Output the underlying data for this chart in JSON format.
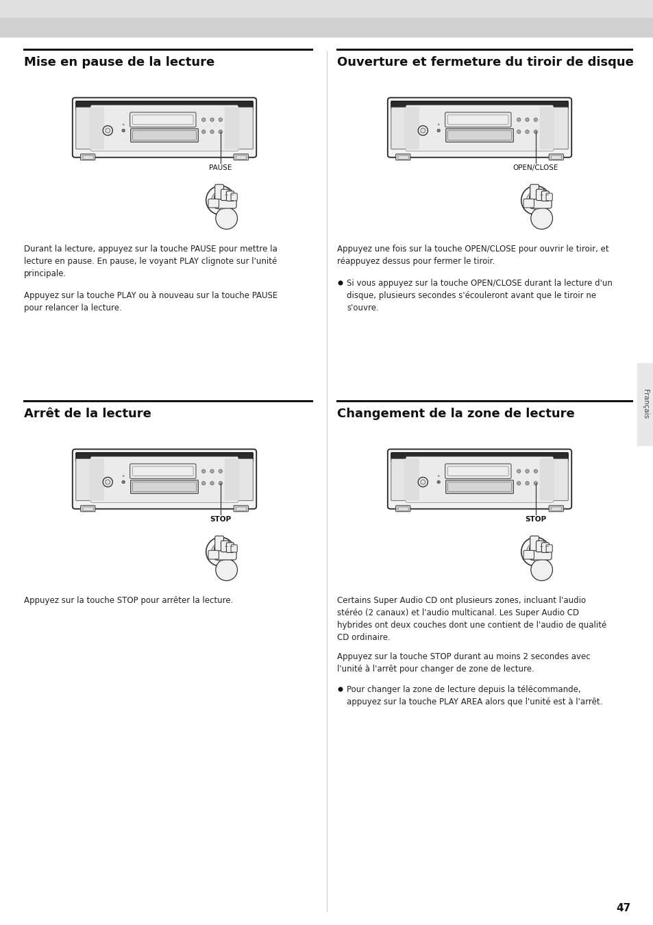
{
  "page_bg_top": "#d8d8d8",
  "page_bg": "#ffffff",
  "page_number": "47",
  "sidebar_label": "Français",
  "sections": [
    {
      "id": "pause",
      "col": 0,
      "title": "Mise en pause de la lecture",
      "button_label": "PAUSE"
    },
    {
      "id": "open_close",
      "col": 1,
      "title": "Ouverture et fermeture du tiroir de disque",
      "button_label": "OPEN/CLOSE"
    },
    {
      "id": "stop",
      "col": 0,
      "title": "Arrêt de la lecture",
      "button_label": "STOP"
    },
    {
      "id": "zone",
      "col": 1,
      "title": "Changement de la zone de lecture",
      "button_label": "STOP"
    }
  ],
  "text_s1_1": "Durant la lecture, appuyez sur la touche PAUSE pour mettre la\nlecture en pause. En pause, le voyant PLAY clignote sur l'unité\nprincipale.",
  "text_s1_2": "Appuyez sur la touche PLAY ou à nouveau sur la touche PAUSE\npour relancer la lecture.",
  "text_s2_1": "Appuyez une fois sur la touche OPEN/CLOSE pour ouvrir le tiroir, et\nréappuyez dessus pour fermer le tiroir.",
  "bullet_s2_1": "Si vous appuyez sur la touche OPEN/CLOSE durant la lecture d'un\ndisque, plusieurs secondes s'écouleront avant que le tiroir ne\ns'ouvre.",
  "text_s3_1": "Appuyez sur la touche STOP pour arrêter la lecture.",
  "text_s4_1": "Certains Super Audio CD ont plusieurs zones, incluant l'audio\nstéréo (2 canaux) et l'audio multicanal. Les Super Audio CD\nhybrides ont deux couches dont une contient de l'audio de qualité\nCD ordinaire.",
  "text_s4_2": "Appuyez sur la touche STOP durant au moins 2 secondes avec\nl'unité à l'arrêt pour changer de zone de lecture.",
  "bullet_s4_1": "Pour changer la zone de lecture depuis la télécommande,\nappuyez sur la touche PLAY AREA alors que l'unité est à l'arrêt."
}
